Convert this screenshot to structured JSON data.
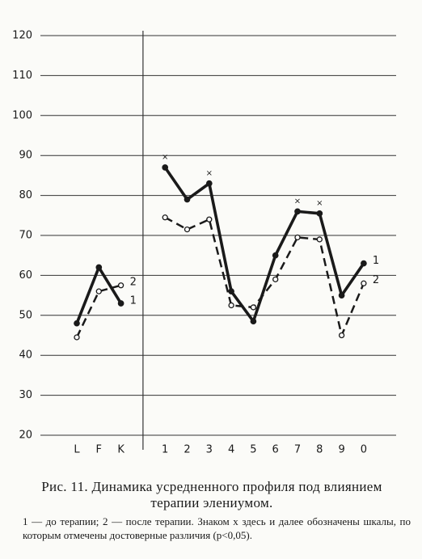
{
  "chart_data": {
    "type": "line",
    "title": "Рис. 11. Динамика усредненного профиля под влиянием терапии элениумом.",
    "note": "1 — до терапии; 2 — после терапии. Знаком x здесь и далее обозначены шкалы, по которым отмечены достоверные различия (p<0,05).",
    "categories": [
      "L",
      "F",
      "K",
      null,
      "1",
      "2",
      "3",
      "4",
      "5",
      "6",
      "7",
      "8",
      "9",
      "0"
    ],
    "series": [
      {
        "name": "1",
        "color": "#1a1a1a",
        "dash": false,
        "values": [
          48,
          62,
          53,
          null,
          87,
          79,
          83,
          56,
          48.5,
          65,
          76,
          75.5,
          55,
          63
        ]
      },
      {
        "name": "2",
        "color": "#1a1a1a",
        "dash": true,
        "values": [
          44.5,
          56,
          57.5,
          null,
          74.5,
          71.5,
          74,
          52.5,
          52,
          59,
          69.5,
          69,
          45,
          58
        ]
      }
    ],
    "significance_symbol": "×",
    "significant": [
      false,
      false,
      false,
      false,
      true,
      false,
      true,
      false,
      false,
      false,
      true,
      true,
      false,
      false
    ],
    "ylim": [
      20,
      120
    ],
    "yticks": [
      20,
      30,
      40,
      50,
      60,
      70,
      80,
      90,
      100,
      110,
      120
    ],
    "grid": true
  }
}
